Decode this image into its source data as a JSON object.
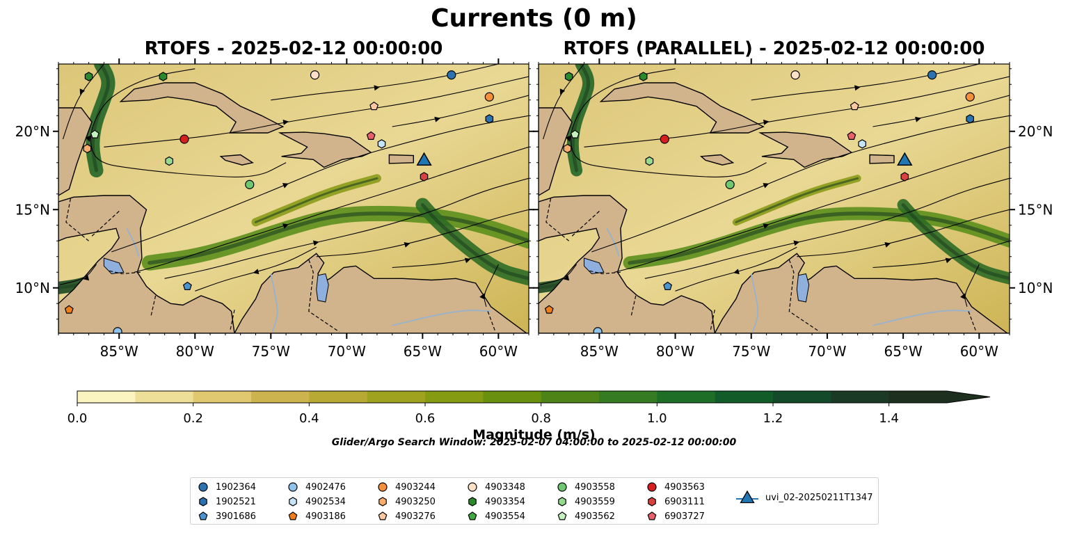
{
  "figure": {
    "suptitle": "Currents (0 m)",
    "search_window": "Glider/Argo Search Window: 2025-02-07 04:00:00 to 2025-02-12 00:00:00"
  },
  "colors": {
    "land": "#d2b48c",
    "water_path": "#9bb3c9",
    "glider": "#1f77b4"
  },
  "chart_data": [
    {
      "type": "heatmap",
      "title": "RTOFS - 2025-02-12 00:00:00",
      "x_ticks": [
        "85°W",
        "80°W",
        "75°W",
        "70°W",
        "65°W",
        "60°W"
      ],
      "y_ticks": [
        "20°N",
        "15°N",
        "10°N"
      ],
      "x_tick_values": [
        -85,
        -80,
        -75,
        -70,
        -65,
        -60
      ],
      "y_tick_values": [
        20,
        15,
        10
      ],
      "xlim": [
        -89,
        -58
      ],
      "ylim": [
        7.1,
        24.3
      ],
      "markers": [
        {
          "id": "1902364",
          "lon": -63.1,
          "lat": 23.6
        },
        {
          "id": "4903348",
          "lon": -72.1,
          "lat": 23.6
        },
        {
          "id": "4903354",
          "lon": -87.0,
          "lat": 23.5
        },
        {
          "id": "4903354",
          "lon": -82.1,
          "lat": 23.5
        },
        {
          "id": "4903244",
          "lon": -60.6,
          "lat": 22.2
        },
        {
          "id": "4903276",
          "lon": -68.2,
          "lat": 21.6
        },
        {
          "id": "1902521",
          "lon": -60.6,
          "lat": 20.8
        },
        {
          "id": "4903562",
          "lon": -86.6,
          "lat": 19.8
        },
        {
          "id": "6903727",
          "lon": -68.4,
          "lat": 19.7
        },
        {
          "id": "4903563",
          "lon": -80.7,
          "lat": 19.5
        },
        {
          "id": "4902534",
          "lon": -67.7,
          "lat": 19.2
        },
        {
          "id": "4903250",
          "lon": -87.1,
          "lat": 18.9
        },
        {
          "id": "4903559",
          "lon": -81.7,
          "lat": 18.1
        },
        {
          "id": "4903558",
          "lon": -76.4,
          "lat": 16.6
        },
        {
          "id": "6903111",
          "lon": -64.9,
          "lat": 17.1
        },
        {
          "id": "3901686",
          "lon": -80.5,
          "lat": 10.1
        },
        {
          "id": "4903186",
          "lon": -88.3,
          "lat": 8.6
        },
        {
          "id": "4902476",
          "lon": -85.1,
          "lat": 7.2
        },
        {
          "id": "uvi_02-20250211T1347",
          "lon": -64.9,
          "lat": 18.1
        }
      ]
    },
    {
      "type": "heatmap",
      "title": "RTOFS (PARALLEL) - 2025-02-12 00:00:00",
      "x_ticks": [
        "85°W",
        "80°W",
        "75°W",
        "70°W",
        "65°W",
        "60°W"
      ],
      "y_ticks": [
        "20°N",
        "15°N",
        "10°N"
      ],
      "x_tick_values": [
        -85,
        -80,
        -75,
        -70,
        -65,
        -60
      ],
      "y_tick_values": [
        20,
        15,
        10
      ],
      "xlim": [
        -89,
        -58
      ],
      "ylim": [
        7.1,
        24.3
      ],
      "markers": [
        {
          "id": "1902364",
          "lon": -63.1,
          "lat": 23.6
        },
        {
          "id": "4903348",
          "lon": -72.1,
          "lat": 23.6
        },
        {
          "id": "4903354",
          "lon": -87.0,
          "lat": 23.5
        },
        {
          "id": "4903354",
          "lon": -82.1,
          "lat": 23.5
        },
        {
          "id": "4903244",
          "lon": -60.6,
          "lat": 22.2
        },
        {
          "id": "4903276",
          "lon": -68.2,
          "lat": 21.6
        },
        {
          "id": "1902521",
          "lon": -60.6,
          "lat": 20.8
        },
        {
          "id": "4903562",
          "lon": -86.6,
          "lat": 19.8
        },
        {
          "id": "6903727",
          "lon": -68.4,
          "lat": 19.7
        },
        {
          "id": "4903563",
          "lon": -80.7,
          "lat": 19.5
        },
        {
          "id": "4902534",
          "lon": -67.7,
          "lat": 19.2
        },
        {
          "id": "4903250",
          "lon": -87.1,
          "lat": 18.9
        },
        {
          "id": "4903559",
          "lon": -81.7,
          "lat": 18.1
        },
        {
          "id": "4903558",
          "lon": -76.4,
          "lat": 16.6
        },
        {
          "id": "6903111",
          "lon": -64.9,
          "lat": 17.1
        },
        {
          "id": "3901686",
          "lon": -80.5,
          "lat": 10.1
        },
        {
          "id": "4903186",
          "lon": -88.3,
          "lat": 8.6
        },
        {
          "id": "4902476",
          "lon": -85.1,
          "lat": 7.2
        },
        {
          "id": "uvi_02-20250211T1347",
          "lon": -64.9,
          "lat": 18.1
        }
      ]
    }
  ],
  "colorbar": {
    "label": "Magnitude (m/s)",
    "ticks": [
      "0.0",
      "0.2",
      "0.4",
      "0.6",
      "0.8",
      "1.0",
      "1.2",
      "1.4"
    ],
    "tick_values": [
      0,
      0.2,
      0.4,
      0.6,
      0.8,
      1.0,
      1.2,
      1.4
    ],
    "range": [
      0,
      1.5
    ],
    "extend": "max",
    "colors": [
      "#fbf3c0",
      "#eedf98",
      "#e0c870",
      "#cdb34d",
      "#b8a935",
      "#9ea21f",
      "#849b12",
      "#6a900f",
      "#4e8417",
      "#357b22",
      "#1f6e28",
      "#125c2a",
      "#134a29",
      "#1a3a25",
      "#1d2f1f"
    ]
  },
  "legend": {
    "items": [
      {
        "label": "1902364",
        "shape": "circle",
        "color": "#2b72b0"
      },
      {
        "label": "1902521",
        "shape": "hexagon",
        "color": "#2b72b0"
      },
      {
        "label": "3901686",
        "shape": "pentagon",
        "color": "#4a94d0"
      },
      {
        "label": "4902476",
        "shape": "circle",
        "color": "#8ec2ea"
      },
      {
        "label": "4902534",
        "shape": "hexagon",
        "color": "#c7e3f8"
      },
      {
        "label": "4903186",
        "shape": "pentagon",
        "color": "#f07f1a"
      },
      {
        "label": "4903244",
        "shape": "circle",
        "color": "#f4903a"
      },
      {
        "label": "4903250",
        "shape": "hexagon",
        "color": "#f8ad6a"
      },
      {
        "label": "4903276",
        "shape": "pentagon",
        "color": "#fcc9a0"
      },
      {
        "label": "4903348",
        "shape": "circle",
        "color": "#fde0c8"
      },
      {
        "label": "4903354",
        "shape": "hexagon",
        "color": "#2b8a2b"
      },
      {
        "label": "4903554",
        "shape": "pentagon",
        "color": "#42a842"
      },
      {
        "label": "4903558",
        "shape": "circle",
        "color": "#6fc86f"
      },
      {
        "label": "4903559",
        "shape": "hexagon",
        "color": "#95da8e"
      },
      {
        "label": "4903562",
        "shape": "pentagon",
        "color": "#c5f0bf"
      },
      {
        "label": "4903563",
        "shape": "circle",
        "color": "#d62020"
      },
      {
        "label": "6903111",
        "shape": "hexagon",
        "color": "#d94040"
      },
      {
        "label": "6903727",
        "shape": "pentagon",
        "color": "#e8606a"
      },
      {
        "label": "uvi_02-20250211T1347",
        "shape": "triangle-line",
        "color": "#1f77b4"
      }
    ]
  }
}
